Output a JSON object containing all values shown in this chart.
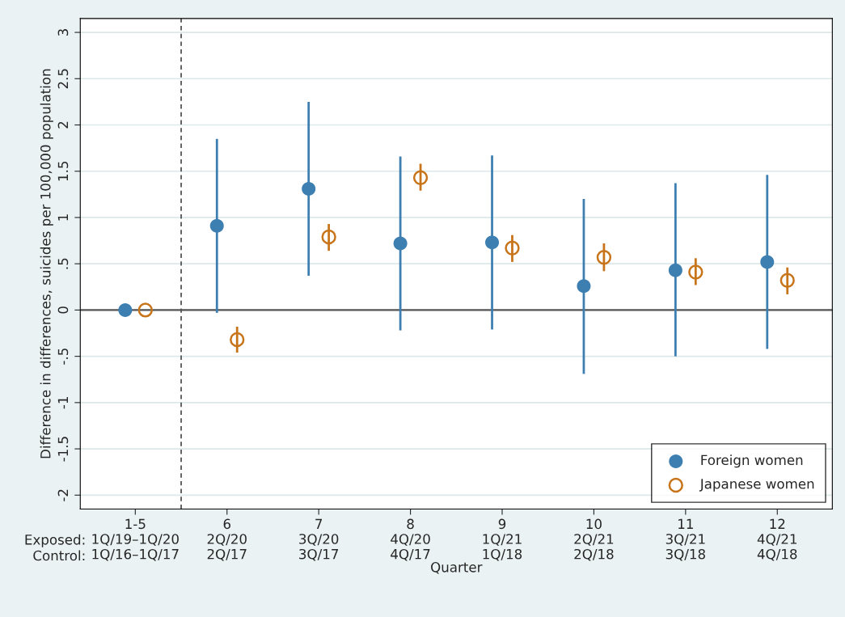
{
  "chart_data": {
    "type": "scatter",
    "ylabel": "Difference in differences, suicides per 100,000 population",
    "xlabel": "Quarter",
    "annotations": [
      "Exposed:",
      "Control:"
    ],
    "categories": [
      "1-5\n1Q/19–1Q/20\n1Q/16–1Q/17",
      "6\n2Q/20\n2Q/17",
      "7\n3Q/20\n3Q/17",
      "8\n4Q/20\n4Q/17",
      "9\n1Q/21\n1Q/18",
      "10\n2Q/21\n2Q/18",
      "11\n3Q/21\n3Q/18",
      "12\n4Q/21\n4Q/18"
    ],
    "series": [
      {
        "name": "Foreign women",
        "color": "#3e7fb1",
        "marker": "circle",
        "values": [
          0,
          0.91,
          1.31,
          0.72,
          0.73,
          0.26,
          0.43,
          0.52
        ],
        "errors": [
          null,
          [
            -0.03,
            1.85
          ],
          [
            0.37,
            2.25
          ],
          [
            -0.22,
            1.66
          ],
          [
            -0.21,
            1.67
          ],
          [
            -0.69,
            1.2
          ],
          [
            -0.5,
            1.37
          ],
          [
            -0.42,
            1.46
          ]
        ]
      },
      {
        "name": "Japanese women",
        "color": "#c8741a",
        "marker": "open circle",
        "values": [
          0,
          -0.32,
          0.79,
          1.43,
          0.67,
          0.57,
          0.41,
          0.32
        ],
        "errors": [
          null,
          [
            -0.46,
            -0.18
          ],
          [
            0.64,
            0.93
          ],
          [
            1.29,
            1.58
          ],
          [
            0.52,
            0.81
          ],
          [
            0.42,
            0.72
          ],
          [
            0.27,
            0.56
          ],
          [
            0.17,
            0.46
          ]
        ]
      }
    ],
    "ylim": [
      -2.15,
      3.15
    ],
    "yticks": [
      {
        "value": -2,
        "label": "-2"
      },
      {
        "value": -1.5,
        "label": "-1.5"
      },
      {
        "value": -1,
        "label": "-1"
      },
      {
        "value": -0.5,
        "label": "-.5"
      },
      0,
      {
        "value": 0.5,
        "label": ".5"
      },
      1,
      1.5,
      2,
      2.5,
      3
    ],
    "ref_lines": [
      {
        "axis": "y",
        "value": 0,
        "color": "#555555",
        "line_style": "solid"
      }
    ],
    "grid": "y",
    "legend": "bottom right"
  }
}
